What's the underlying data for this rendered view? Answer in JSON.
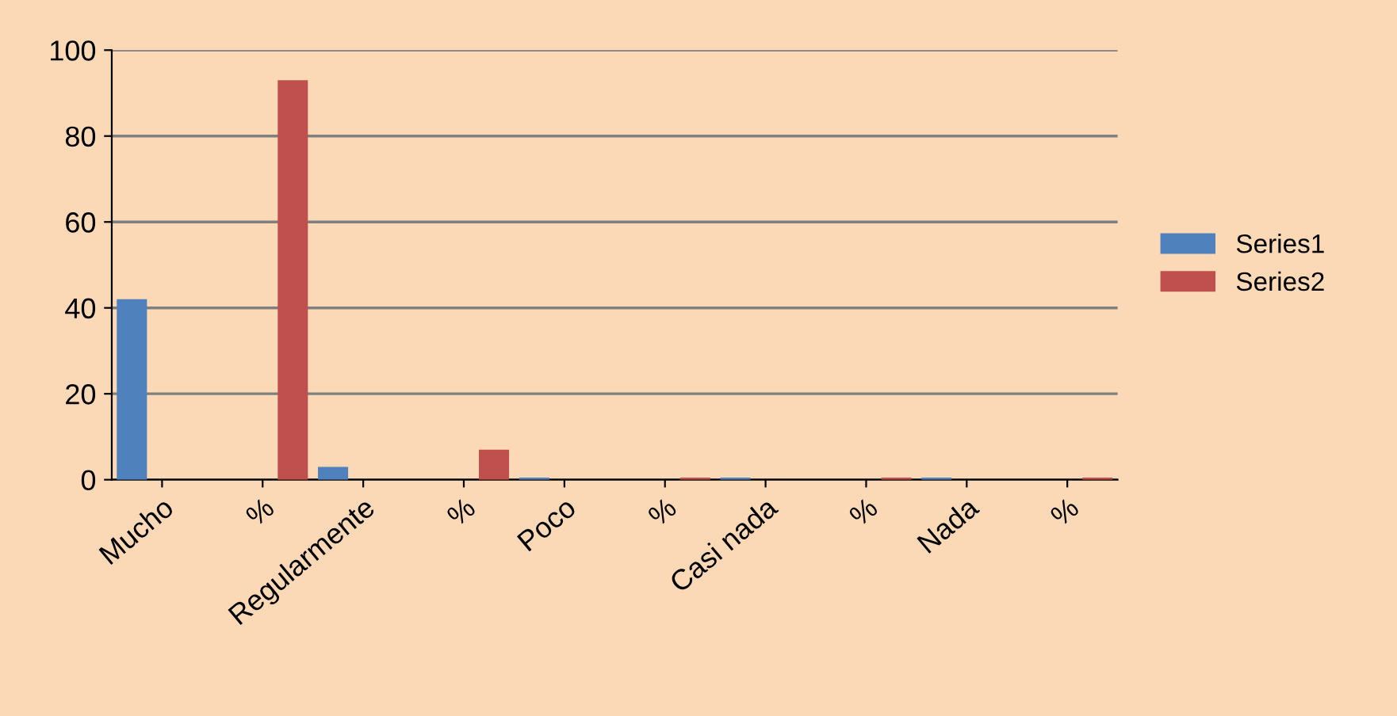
{
  "chart_data": {
    "type": "bar",
    "categories": [
      "Mucho",
      "%",
      "Regularmente",
      "%",
      "Poco",
      "%",
      "Casi nada",
      "%",
      "Nada",
      "%"
    ],
    "series": [
      {
        "name": "Series1",
        "color": "#4f81bd",
        "values": [
          42,
          null,
          3,
          null,
          0.5,
          null,
          0.5,
          null,
          0.5,
          null
        ]
      },
      {
        "name": "Series2",
        "color": "#c0504d",
        "values": [
          null,
          93,
          null,
          7,
          null,
          0.5,
          null,
          0.5,
          null,
          0.5
        ]
      }
    ],
    "ylim": [
      0,
      100
    ],
    "yticks": [
      0,
      20,
      40,
      60,
      80,
      100
    ],
    "grid": "y",
    "legend": "right"
  }
}
